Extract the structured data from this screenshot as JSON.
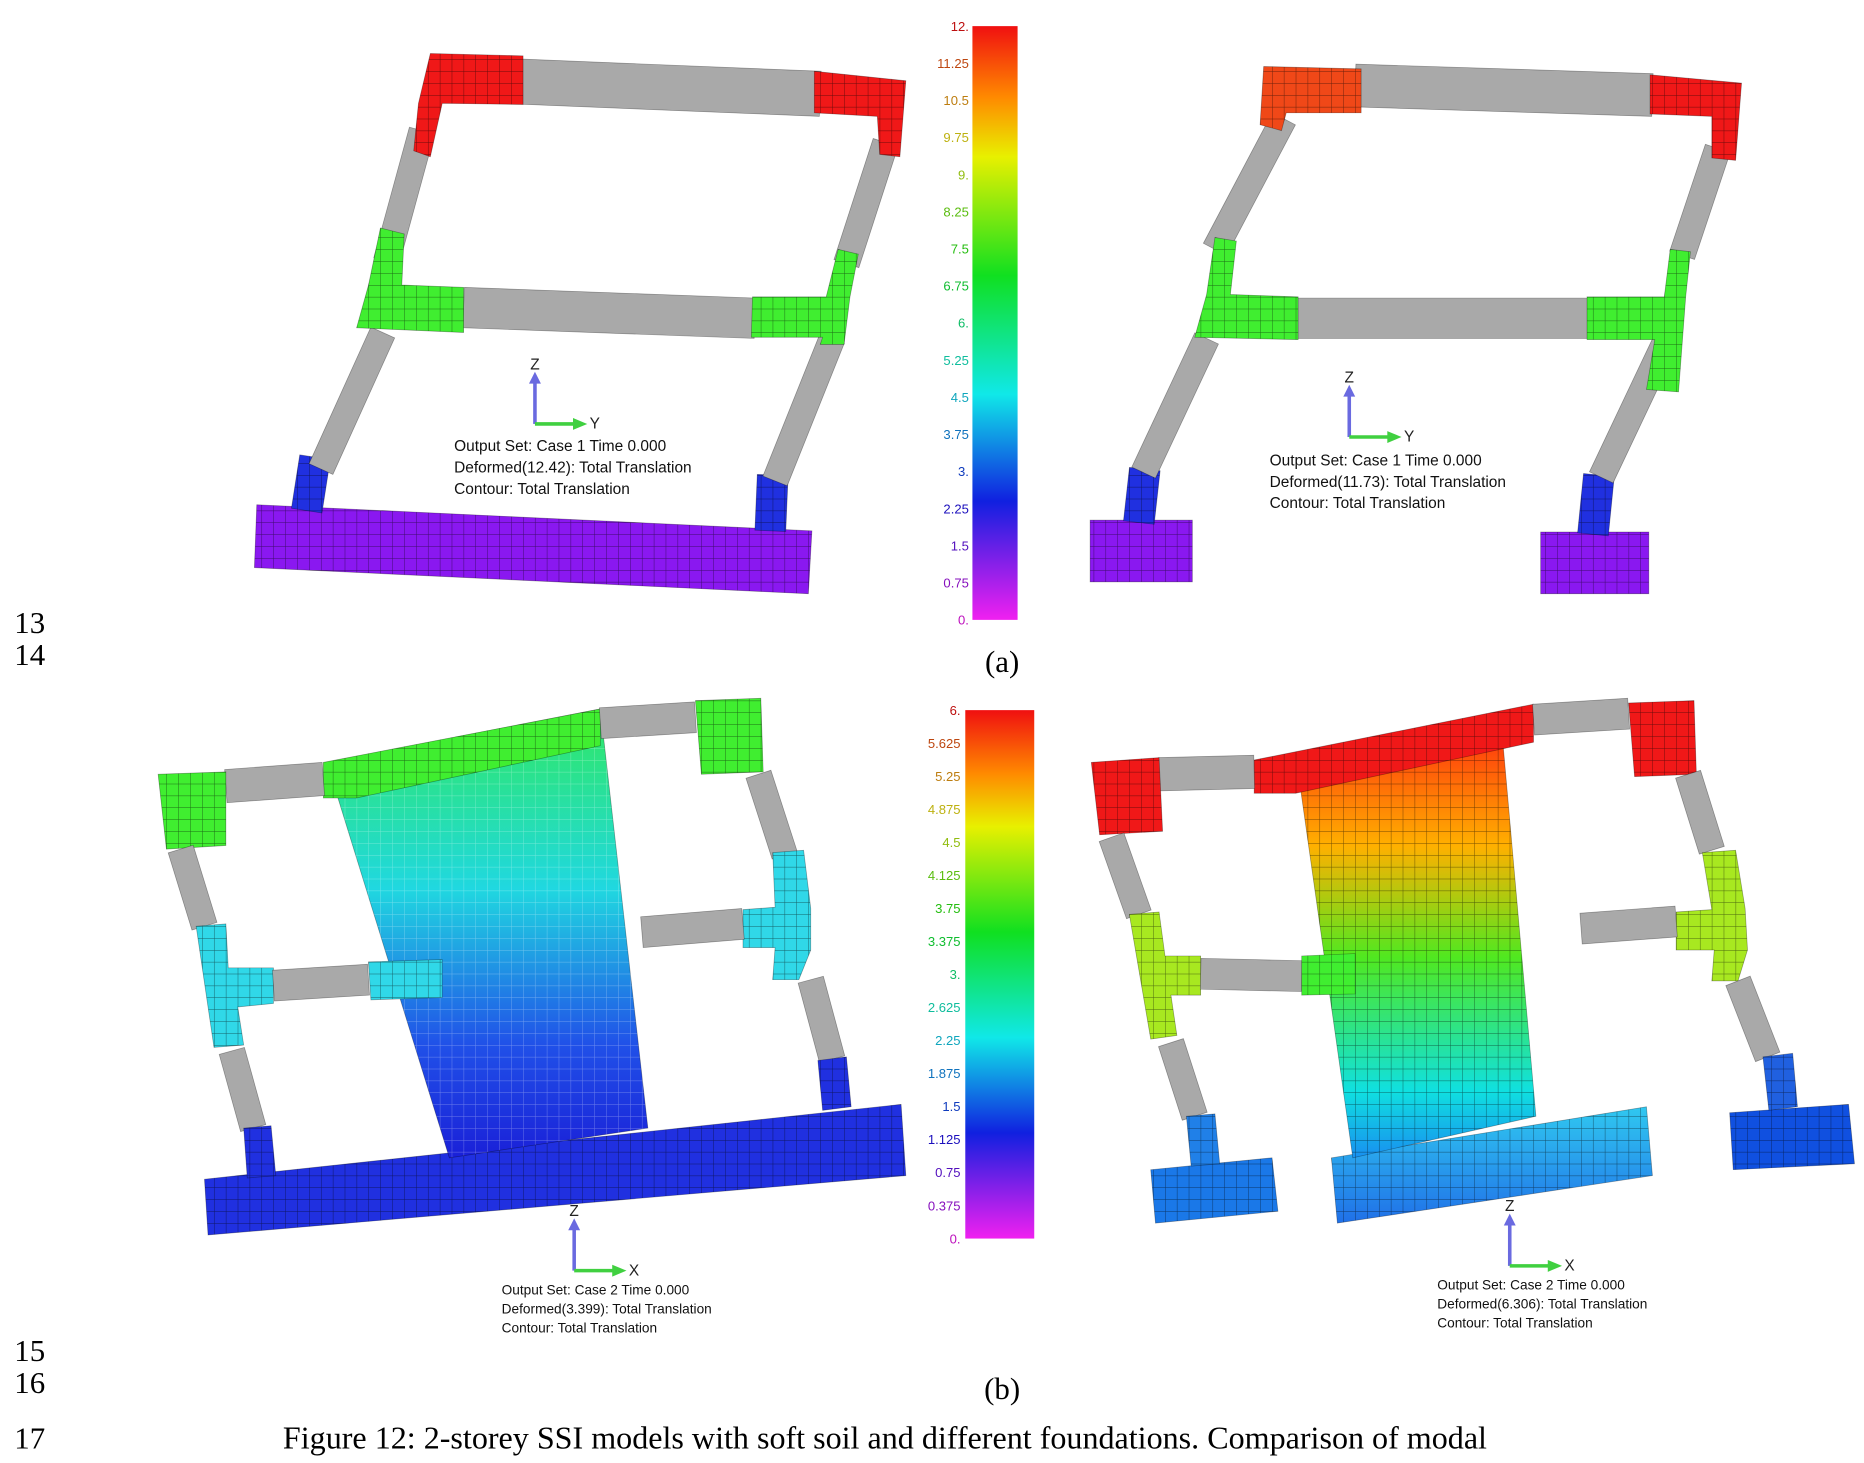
{
  "line_numbers": [
    "13",
    "14",
    "15",
    "16",
    "17"
  ],
  "panel_a": {
    "label": "(a)",
    "colorbar_labels": [
      "12.",
      "11.25",
      "10.5",
      "9.75",
      "9.",
      "8.25",
      "7.5",
      "6.75",
      "6.",
      "5.25",
      "4.5",
      "3.75",
      "3.",
      "2.25",
      "1.5",
      "0.75",
      "0."
    ],
    "models": [
      {
        "axis_up": "Z",
        "axis_right": "Y",
        "annotation": [
          "Output Set: Case    1 Time    0.000",
          "Deformed(12.42): Total Translation",
          "Contour: Total Translation"
        ]
      },
      {
        "axis_up": "Z",
        "axis_right": "Y",
        "annotation": [
          "Output Set: Case    1 Time    0.000",
          "Deformed(11.73): Total Translation",
          "Contour: Total Translation"
        ]
      }
    ]
  },
  "panel_b": {
    "label": "(b)",
    "colorbar_labels": [
      "6.",
      "5.625",
      "5.25",
      "4.875",
      "4.5",
      "4.125",
      "3.75",
      "3.375",
      "3.",
      "2.625",
      "2.25",
      "1.875",
      "1.5",
      "1.125",
      "0.75",
      "0.375",
      "0."
    ],
    "models": [
      {
        "axis_up": "Z",
        "axis_right": "X",
        "annotation": [
          "Output Set: Case    2 Time    0.000",
          "Deformed(3.399): Total Translation",
          "Contour: Total Translation"
        ]
      },
      {
        "axis_up": "Z",
        "axis_right": "X",
        "annotation": [
          "Output Set: Case    2 Time    0.000",
          "Deformed(6.306): Total Translation",
          "Contour: Total Translation"
        ]
      }
    ]
  },
  "caption": "Figure 12: 2-storey SSI models with soft soil and different foundations. Comparison of modal"
}
